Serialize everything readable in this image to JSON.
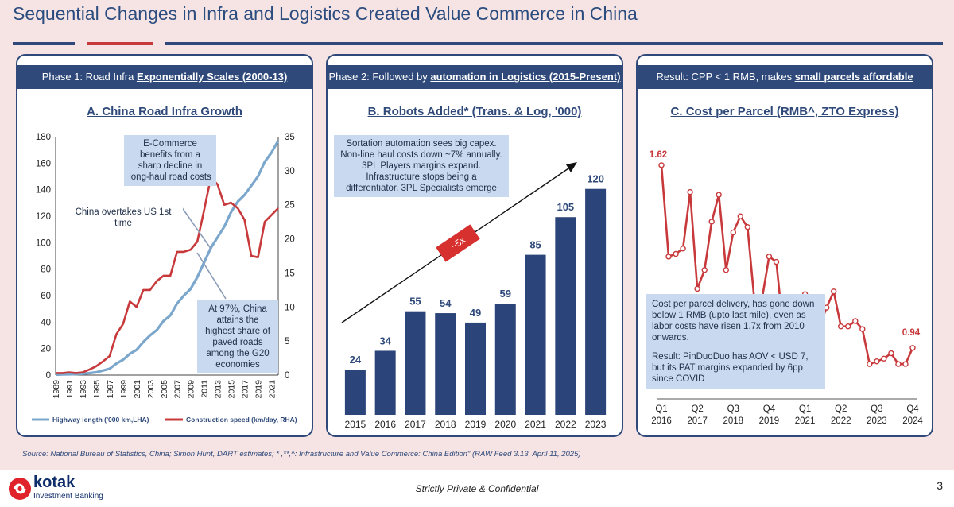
{
  "page": {
    "title": "Sequential Changes in Infra and Logistics Created Value Commerce in China",
    "source": "Source: National Bureau of Statistics, China; Simon Hunt, DART estimates; * ,**,^: Infrastructure and Value Commerce: China Edition\" (RAW Feed 3.13, April 11, 2025)",
    "confidential": "Strictly Private & Confidential",
    "page_number": "3",
    "logo_name": "kotak",
    "logo_sub": "Investment Banking",
    "colors": {
      "navy": "#2f4a7a",
      "red": "#c8393b",
      "light_blue": "#7ba7cc",
      "note_bg": "#c9d9ef"
    }
  },
  "panel1": {
    "head_prefix": "Phase 1: Road Infra ",
    "head_emph": "Exponentially Scales (2000-13)",
    "note_top": "E-Commerce benefits from a sharp decline in long-haul road costs",
    "note_overtake": "China overtakes US 1st time",
    "note_bottom": "At 97%, China attains the highest share of paved roads among the G20 economies"
  },
  "panel2": {
    "head_prefix": "Phase 2: Followed by ",
    "head_emph": "automation in Logistics (2015-Present)",
    "note": "Sortation automation sees big capex. Non-line haul costs down ~7% annually. 3PL Players margins expand. Infrastructure stops being a differentiator. 3PL Specialists emerge",
    "growth_label": "~5x"
  },
  "panel3": {
    "head_prefix": "Result: CPP < 1 RMB, makes ",
    "head_emph": "small parcels affordable",
    "note_p1": "Cost per parcel delivery, has gone down below 1 RMB (upto last mile), even as labor costs have risen 1.7x from 2010 onwards.",
    "note_p2": "Result: PinDuoDuo has AOV < USD 7, but its PAT margins expanded by 6pp since COVID"
  },
  "chart_data": [
    {
      "type": "line",
      "title": "A. China Road Infra Growth",
      "x": [
        1989,
        1990,
        1991,
        1992,
        1993,
        1994,
        1995,
        1996,
        1997,
        1998,
        1999,
        2000,
        2001,
        2002,
        2003,
        2004,
        2005,
        2006,
        2007,
        2008,
        2009,
        2010,
        2011,
        2012,
        2013,
        2014,
        2015,
        2016,
        2017,
        2018,
        2019,
        2020,
        2021,
        2022
      ],
      "x_tick_labels": [
        "1989",
        "1991",
        "1993",
        "1995",
        "1997",
        "1999",
        "2001",
        "2003",
        "2005",
        "2007",
        "2009",
        "2011",
        "2013",
        "2015",
        "2017",
        "2019",
        "2021"
      ],
      "ylim_left": [
        0,
        180
      ],
      "yticks_left": [
        0,
        20,
        40,
        60,
        80,
        100,
        120,
        140,
        160,
        180
      ],
      "ylim_right": [
        0,
        35
      ],
      "yticks_right": [
        0,
        5,
        10,
        15,
        20,
        25,
        30,
        35
      ],
      "series": [
        {
          "name": "Highway length ('000 km,LHA)",
          "axis": "left",
          "color": "#7ba7cc",
          "values": [
            0.3,
            0.5,
            0.6,
            0.7,
            1,
            1.5,
            2.1,
            3.4,
            4.8,
            8.7,
            11.6,
            16,
            19,
            25,
            30,
            34,
            41,
            45,
            54,
            60,
            65,
            74,
            85,
            96,
            104,
            112,
            123,
            131,
            136,
            143,
            150,
            161,
            168,
            177
          ]
        },
        {
          "name": "Construction speed (km/day, RHA)",
          "axis": "right",
          "color": "#c8393b",
          "values": [
            0.3,
            0.3,
            0.4,
            0.3,
            0.4,
            0.8,
            1.3,
            2,
            2.8,
            6,
            7.5,
            10.8,
            10,
            12.5,
            12.5,
            13.8,
            14.6,
            14.6,
            18.1,
            18.1,
            18.4,
            19.6,
            24.2,
            29,
            28,
            25,
            25.3,
            24.5,
            22.8,
            17.5,
            17.3,
            22.5,
            23.5,
            24.5
          ]
        }
      ]
    },
    {
      "type": "bar",
      "title": "B. Robots Added* (Trans. & Log, '000)",
      "categories": [
        "2015",
        "2016",
        "2017",
        "2018",
        "2019",
        "2020",
        "2021",
        "2022",
        "2023"
      ],
      "values": [
        24,
        34,
        55,
        54,
        49,
        59,
        85,
        105,
        120
      ],
      "color": "#2b4479"
    },
    {
      "type": "line",
      "title": "C. Cost per Parcel (RMB^, ZTO Express)",
      "x_tick_labels": [
        [
          "Q1",
          "2016"
        ],
        [
          "Q2",
          "2017"
        ],
        [
          "Q3",
          "2018"
        ],
        [
          "Q4",
          "2019"
        ],
        [
          "Q1",
          "2021"
        ],
        [
          "Q2",
          "2022"
        ],
        [
          "Q3",
          "2023"
        ],
        [
          "Q4",
          "2024"
        ]
      ],
      "color": "#c8393b",
      "start_label": "1.62",
      "end_label": "0.94",
      "values": [
        1.62,
        1.28,
        1.29,
        1.31,
        1.52,
        1.16,
        1.23,
        1.41,
        1.51,
        1.23,
        1.37,
        1.43,
        1.39,
        1.1,
        1.12,
        1.28,
        1.26,
        1.0,
        1.1,
        1.13,
        1.14,
        0.99,
        1.02,
        1.09,
        1.15,
        1.02,
        1.02,
        1.04,
        1.01,
        0.88,
        0.89,
        0.9,
        0.92,
        0.88,
        0.88,
        0.94
      ],
      "ylim": [
        0.75,
        1.75
      ]
    }
  ]
}
